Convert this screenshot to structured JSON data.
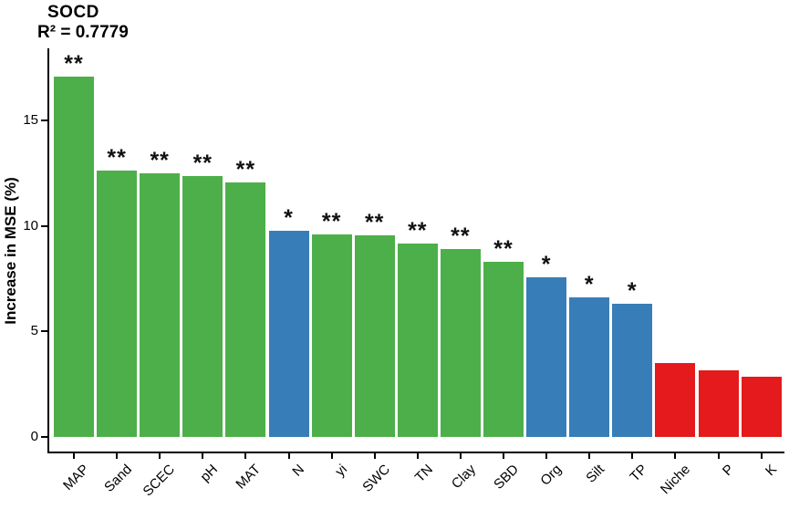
{
  "chart_data": {
    "type": "bar",
    "title": "SOCD",
    "subtitle": "R² = 0.7779",
    "xlabel": "",
    "ylabel": "Increase in MSE (%)",
    "ylim": [
      0,
      18.4
    ],
    "yticks": [
      0,
      5,
      10,
      15
    ],
    "grid": false,
    "legend": "none",
    "colors": {
      "green": "#4DAF4A",
      "blue": "#377EB8",
      "red": "#E41A1C"
    },
    "categories": [
      "MAP",
      "Sand",
      "SCEC",
      "pH",
      "MAT",
      "N",
      "yi",
      "SWC",
      "TN",
      "Clay",
      "SBD",
      "Org",
      "Silt",
      "TP",
      "Niche",
      "P",
      "K"
    ],
    "bars": [
      {
        "category": "MAP",
        "value": 17.05,
        "significance": "**",
        "color_group": "green"
      },
      {
        "category": "Sand",
        "value": 12.6,
        "significance": "**",
        "color_group": "green"
      },
      {
        "category": "SCEC",
        "value": 12.5,
        "significance": "**",
        "color_group": "green"
      },
      {
        "category": "pH",
        "value": 12.35,
        "significance": "**",
        "color_group": "green"
      },
      {
        "category": "MAT",
        "value": 12.05,
        "significance": "**",
        "color_group": "green"
      },
      {
        "category": "N",
        "value": 9.75,
        "significance": "*",
        "color_group": "blue"
      },
      {
        "category": "yi",
        "value": 9.6,
        "significance": "**",
        "color_group": "green"
      },
      {
        "category": "SWC",
        "value": 9.55,
        "significance": "**",
        "color_group": "green"
      },
      {
        "category": "TN",
        "value": 9.15,
        "significance": "**",
        "color_group": "green"
      },
      {
        "category": "Clay",
        "value": 8.9,
        "significance": "**",
        "color_group": "green"
      },
      {
        "category": "SBD",
        "value": 8.3,
        "significance": "**",
        "color_group": "green"
      },
      {
        "category": "Org",
        "value": 7.55,
        "significance": "*",
        "color_group": "blue"
      },
      {
        "category": "Silt",
        "value": 6.6,
        "significance": "*",
        "color_group": "blue"
      },
      {
        "category": "TP",
        "value": 6.3,
        "significance": "*",
        "color_group": "blue"
      },
      {
        "category": "Niche",
        "value": 3.5,
        "significance": "",
        "color_group": "red"
      },
      {
        "category": "P",
        "value": 3.15,
        "significance": "",
        "color_group": "red"
      },
      {
        "category": "K",
        "value": 2.85,
        "significance": "",
        "color_group": "red"
      }
    ]
  }
}
